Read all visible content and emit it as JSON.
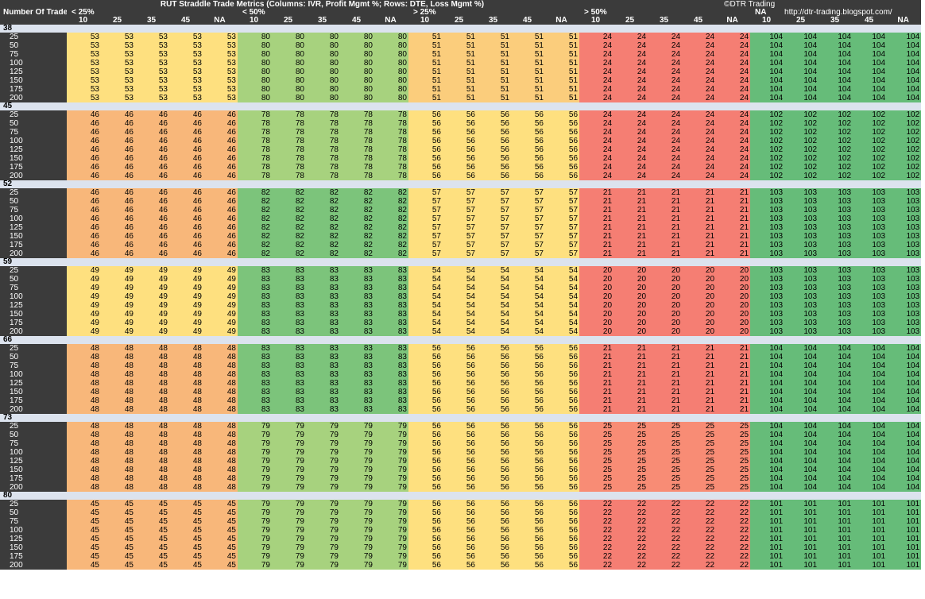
{
  "title": "RUT Straddle Trade Metrics  (Columns: IVR, Profit Mgmt %;    Rows: DTE, Loss Mgmt %)",
  "credit": [
    "©DTR Trading",
    "http://dtr-trading.blogspot.com/"
  ],
  "corner_label": "Number Of Trades",
  "ivr_labels": [
    "< 25%",
    "< 50%",
    "> 25%",
    "> 50%",
    "NA"
  ],
  "profit_mgmt_labels": [
    "10",
    "25",
    "35",
    "45",
    "NA"
  ],
  "loss_mgmt_labels": [
    "25",
    "50",
    "75",
    "100",
    "125",
    "150",
    "175",
    "200"
  ],
  "colors": {
    "header_bg": "#3b3b3b",
    "group_bg": "#dce3ee",
    "orange": "#f8b77a",
    "yellow": "#fee07f",
    "light_orange": "#fbcd7c",
    "light_green": "#a7d27e",
    "green": "#7cc47b",
    "dark_green": "#66bc79",
    "red": "#f57e73",
    "salmon": "#f88c75"
  },
  "chart_data": {
    "type": "table",
    "title": "RUT Straddle Trade Metrics  (Columns: IVR, Profit Mgmt %;    Rows: DTE, Loss Mgmt %)",
    "metric": "Number Of Trades",
    "columns_ivr": [
      "< 25%",
      "< 50%",
      "> 25%",
      "> 50%",
      "NA"
    ],
    "columns_profit_mgmt": [
      "10",
      "25",
      "35",
      "45",
      "NA"
    ],
    "rows_loss_mgmt": [
      "25",
      "50",
      "75",
      "100",
      "125",
      "150",
      "175",
      "200"
    ],
    "groups": [
      {
        "dte": "38",
        "values": [
          53,
          80,
          51,
          24,
          104
        ],
        "colors": [
          "yellow",
          "light_green",
          "light_orange",
          "red",
          "dark_green"
        ]
      },
      {
        "dte": "45",
        "values": [
          46,
          78,
          56,
          24,
          102
        ],
        "colors": [
          "orange",
          "light_green",
          "yellow",
          "red",
          "dark_green"
        ]
      },
      {
        "dte": "52",
        "values": [
          46,
          82,
          57,
          21,
          103
        ],
        "colors": [
          "orange",
          "green",
          "yellow",
          "red",
          "dark_green"
        ]
      },
      {
        "dte": "59",
        "values": [
          49,
          83,
          54,
          20,
          103
        ],
        "colors": [
          "yellow",
          "green",
          "yellow",
          "red",
          "dark_green"
        ]
      },
      {
        "dte": "66",
        "values": [
          48,
          83,
          56,
          21,
          104
        ],
        "colors": [
          "orange",
          "green",
          "yellow",
          "red",
          "dark_green"
        ]
      },
      {
        "dte": "73",
        "values": [
          48,
          79,
          56,
          25,
          104
        ],
        "colors": [
          "orange",
          "light_green",
          "yellow",
          "salmon",
          "dark_green"
        ]
      },
      {
        "dte": "80",
        "values": [
          45,
          79,
          56,
          22,
          101
        ],
        "colors": [
          "orange",
          "light_green",
          "yellow",
          "red",
          "dark_green"
        ]
      }
    ]
  }
}
